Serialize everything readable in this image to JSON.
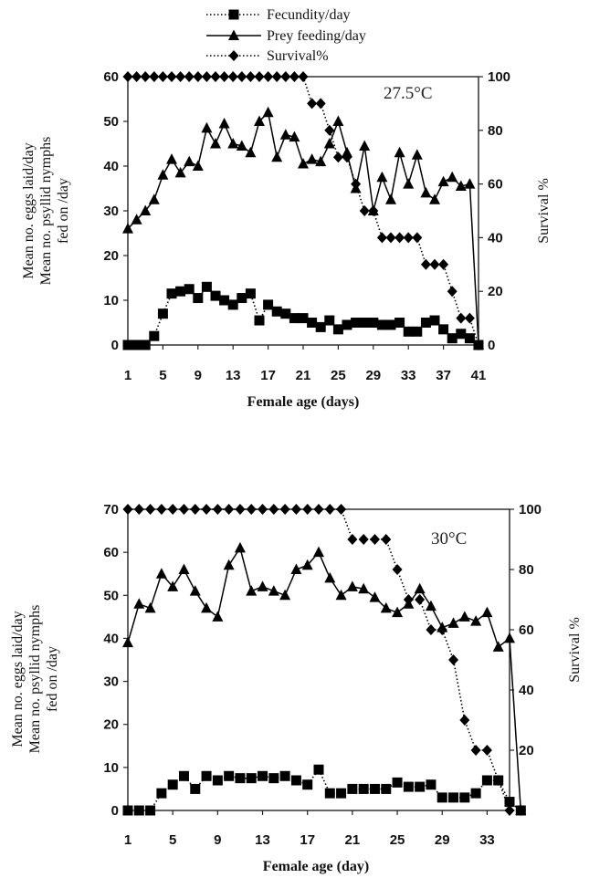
{
  "legend": {
    "items": [
      {
        "label": "Fecundity/day",
        "marker": "square",
        "line": "dotted"
      },
      {
        "label": "Prey feeding/day",
        "marker": "triangle",
        "line": "solid"
      },
      {
        "label": "Survival%",
        "marker": "diamond",
        "line": "dotted"
      }
    ]
  },
  "chart_data": [
    {
      "type": "line",
      "annotation": "27.5°C",
      "xlabel": "Female age (days)",
      "ylabel_lines": [
        "Mean no. eggs laid/day",
        "Mean no. psyllid nymphs",
        "fed on /day"
      ],
      "y2label": "Survival %",
      "xlim": [
        1,
        41
      ],
      "ylim": [
        0,
        60
      ],
      "y2lim": [
        0,
        100
      ],
      "x_ticks": [
        1,
        5,
        9,
        13,
        17,
        21,
        25,
        29,
        33,
        37,
        41
      ],
      "y_ticks": [
        0,
        10,
        20,
        30,
        40,
        50,
        60
      ],
      "y2_ticks": [
        0,
        20,
        40,
        60,
        80,
        100
      ],
      "grid": false,
      "x": [
        1,
        2,
        3,
        4,
        5,
        6,
        7,
        8,
        9,
        10,
        11,
        12,
        13,
        14,
        15,
        16,
        17,
        18,
        19,
        20,
        21,
        22,
        23,
        24,
        25,
        26,
        27,
        28,
        29,
        30,
        31,
        32,
        33,
        34,
        35,
        36,
        37,
        38,
        39,
        40,
        41
      ],
      "series": [
        {
          "name": "Fecundity/day",
          "axis": "left",
          "marker": "square",
          "line": "dotted",
          "values": [
            0,
            0,
            0,
            2,
            7,
            11.5,
            12,
            12.5,
            10.5,
            13,
            11,
            10,
            9,
            10.5,
            11.5,
            5.5,
            9,
            7.5,
            7,
            6,
            6,
            5,
            4,
            5.5,
            3.5,
            4.5,
            5,
            5,
            5,
            4.5,
            4.5,
            5,
            3,
            3,
            5,
            5.5,
            3.5,
            1.5,
            2.5,
            1.5,
            0
          ]
        },
        {
          "name": "Prey feeding/day",
          "axis": "left",
          "marker": "triangle",
          "line": "solid",
          "values": [
            26,
            28,
            30,
            32.5,
            38,
            41.5,
            38.5,
            41,
            40,
            48.5,
            45,
            49.5,
            45,
            44.5,
            43,
            50,
            52,
            42,
            47,
            46.5,
            40.5,
            41.5,
            41,
            45,
            50,
            43,
            35,
            44.5,
            30,
            37.5,
            32.5,
            43,
            36,
            42.5,
            34,
            32.5,
            36.5,
            37.5,
            35.5,
            36,
            0
          ]
        },
        {
          "name": "Survival%",
          "axis": "right",
          "marker": "diamond",
          "line": "dotted",
          "values": [
            100,
            100,
            100,
            100,
            100,
            100,
            100,
            100,
            100,
            100,
            100,
            100,
            100,
            100,
            100,
            100,
            100,
            100,
            100,
            100,
            100,
            90,
            90,
            80,
            70,
            70,
            60,
            50,
            50,
            40,
            40,
            40,
            40,
            40,
            30,
            30,
            30,
            20,
            10,
            10,
            0
          ]
        }
      ]
    },
    {
      "type": "line",
      "annotation": "30°C",
      "xlabel": "Female age (day)",
      "ylabel_lines": [
        "Mean no. eggs laid/day",
        "Mean no. psyllid nymphs",
        "fed on /day"
      ],
      "y2label": "Survival %",
      "xlim": [
        1,
        35
      ],
      "ylim": [
        0,
        70
      ],
      "y2lim": [
        0,
        100
      ],
      "x_ticks": [
        1,
        5,
        9,
        13,
        17,
        21,
        25,
        29,
        33
      ],
      "y_ticks": [
        0,
        10,
        20,
        30,
        40,
        50,
        60,
        70
      ],
      "y2_ticks": [
        0,
        20,
        40,
        60,
        80,
        100
      ],
      "grid": false,
      "x": [
        1,
        2,
        3,
        4,
        5,
        6,
        7,
        8,
        9,
        10,
        11,
        12,
        13,
        14,
        15,
        16,
        17,
        18,
        19,
        20,
        21,
        22,
        23,
        24,
        25,
        26,
        27,
        28,
        29,
        30,
        31,
        32,
        33,
        34,
        35,
        36
      ],
      "series": [
        {
          "name": "Fecundity/day",
          "axis": "left",
          "marker": "square",
          "line": "dotted",
          "values": [
            0,
            0,
            0,
            4,
            6,
            8,
            5,
            8,
            7,
            8,
            7.5,
            7.5,
            8,
            7.5,
            8,
            7,
            6,
            9.5,
            4,
            4,
            5,
            5,
            5,
            5,
            6.5,
            5.5,
            5.5,
            6,
            3,
            3,
            3,
            4,
            7,
            7,
            2,
            0
          ]
        },
        {
          "name": "Prey feeding/day",
          "axis": "left",
          "marker": "triangle",
          "line": "solid",
          "values": [
            39,
            48,
            47,
            55,
            52,
            56,
            51,
            47,
            45,
            57,
            61,
            51,
            52,
            51,
            50,
            56,
            57,
            60,
            54,
            50,
            52,
            51.5,
            49.5,
            47,
            46,
            48,
            51.5,
            47.5,
            42.5,
            43.5,
            45,
            44,
            46,
            38,
            40,
            0
          ]
        },
        {
          "name": "Survival%",
          "axis": "right",
          "marker": "diamond",
          "line": "dotted",
          "values": [
            100,
            100,
            100,
            100,
            100,
            100,
            100,
            100,
            100,
            100,
            100,
            100,
            100,
            100,
            100,
            100,
            100,
            100,
            100,
            100,
            90,
            90,
            90,
            90,
            80,
            70,
            70,
            60,
            60,
            50,
            30,
            20,
            20,
            10,
            0,
            0
          ]
        }
      ]
    }
  ]
}
